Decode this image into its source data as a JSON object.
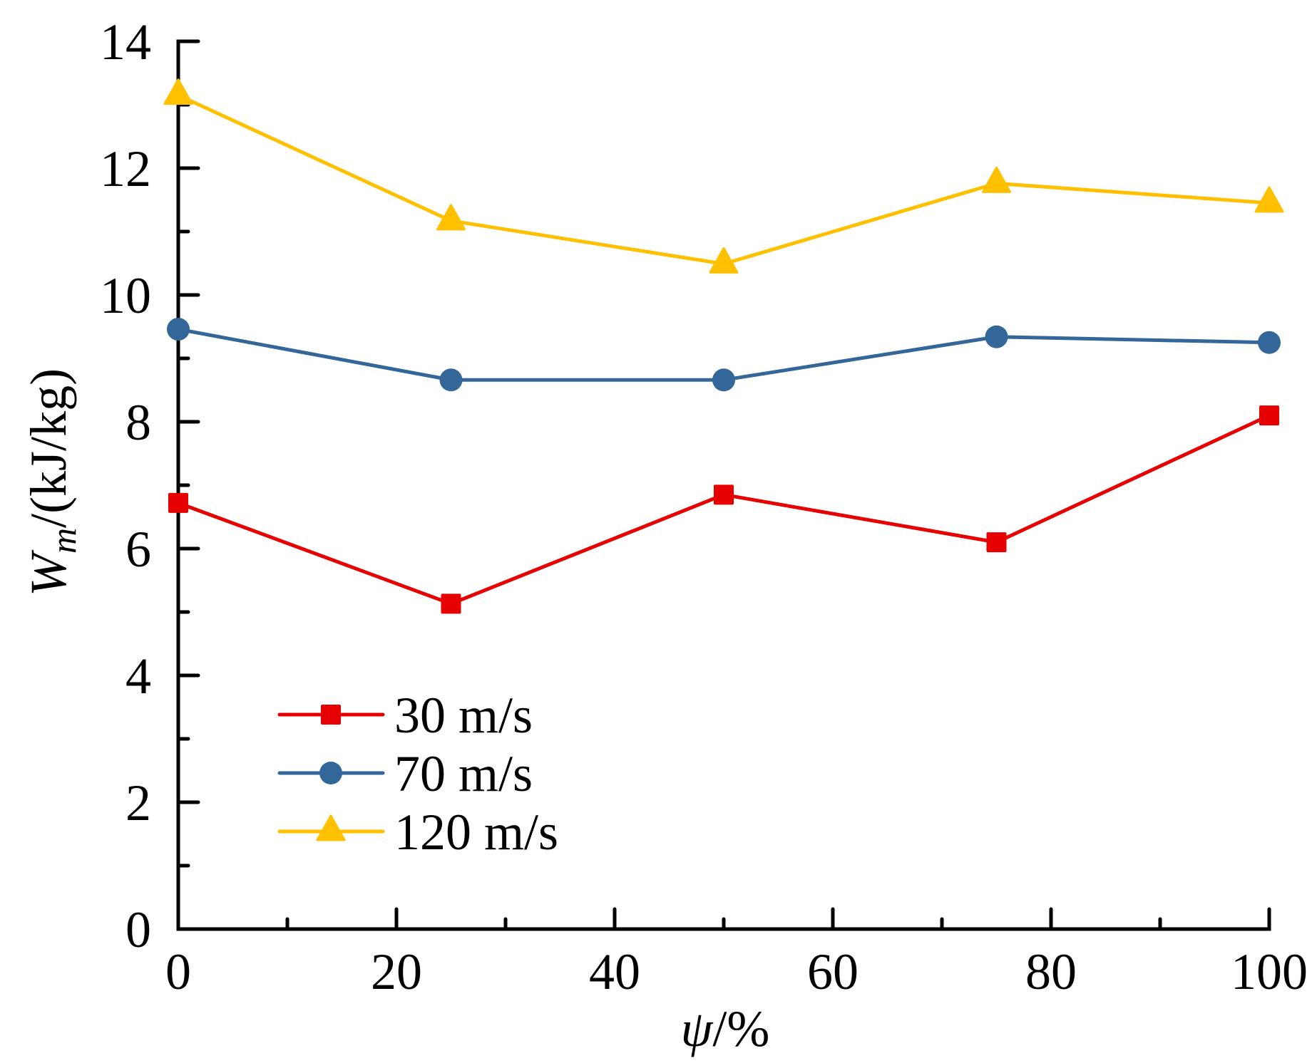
{
  "chart_data": {
    "type": "line",
    "title": "",
    "xlabel": "ψ/%",
    "xlabel_parts": [
      {
        "text": "ψ",
        "italic": true
      },
      {
        "text": "/%",
        "italic": false
      }
    ],
    "ylabel": "W_m/(kJ/kg)",
    "ylabel_parts": [
      {
        "text": "W",
        "italic": true
      },
      {
        "text": "m",
        "italic": true,
        "sub": true
      },
      {
        "text": "/(kJ/kg)",
        "italic": false
      }
    ],
    "x": [
      0,
      25,
      50,
      75,
      100
    ],
    "xlim": [
      0,
      100
    ],
    "ylim": [
      0,
      14
    ],
    "xticks": [
      0,
      20,
      40,
      60,
      80,
      100
    ],
    "xtick_labels": [
      "0",
      "20",
      "40",
      "60",
      "80",
      "100"
    ],
    "xminor_step": 10,
    "yticks": [
      0,
      2,
      4,
      6,
      8,
      10,
      12,
      14
    ],
    "ytick_labels": [
      "0",
      "2",
      "4",
      "6",
      "8",
      "10",
      "12",
      "14"
    ],
    "yminor_step": 1,
    "grid": false,
    "legend_position": "bottom-left",
    "series": [
      {
        "name": "30 m/s",
        "color": "#E60000",
        "marker": "square",
        "values": [
          6.72,
          5.13,
          6.85,
          6.1,
          8.1
        ]
      },
      {
        "name": "70 m/s",
        "color": "#336699",
        "marker": "circle",
        "values": [
          9.46,
          8.66,
          8.66,
          9.34,
          9.25
        ]
      },
      {
        "name": "120 m/s",
        "color": "#FFC000",
        "marker": "triangle",
        "values": [
          13.15,
          11.17,
          10.49,
          11.76,
          11.45
        ]
      }
    ]
  }
}
